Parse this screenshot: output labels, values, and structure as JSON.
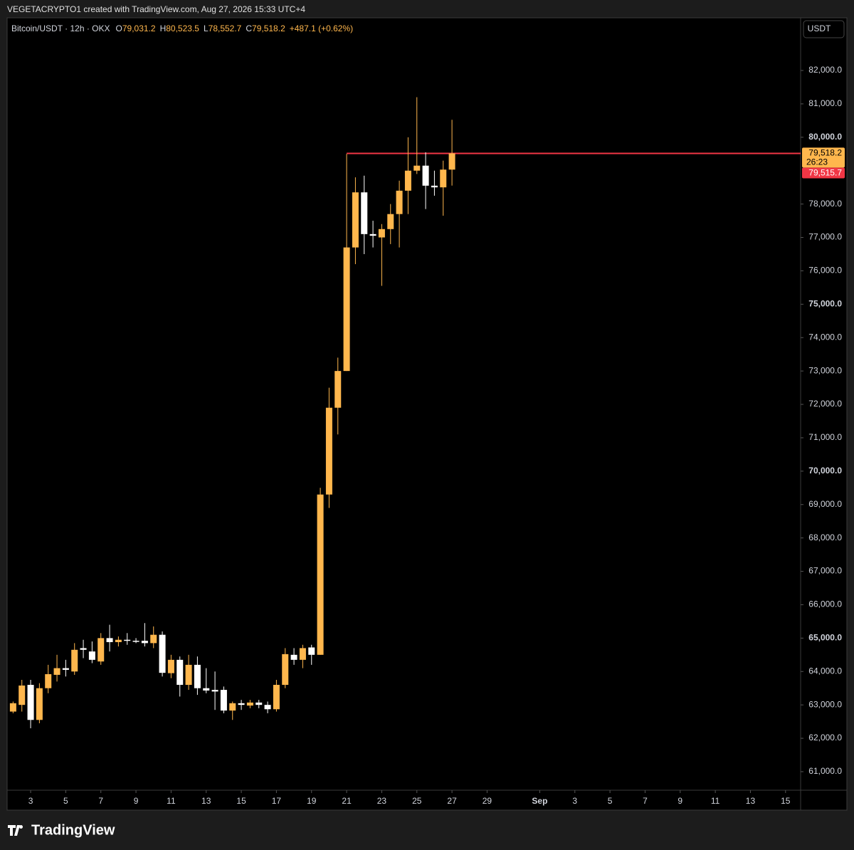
{
  "header": {
    "watermark": "VEGETACRYPTO1 created with TradingView.com, Aug 27, 2026 15:33 UTC+4",
    "currency": "USDT"
  },
  "legend": {
    "symbol": "Bitcoin/USDT · 12h · OKX",
    "fields": [
      {
        "label": "O",
        "value": "79,031.2"
      },
      {
        "label": "H",
        "value": "80,523.5"
      },
      {
        "label": "L",
        "value": "78,552.7"
      },
      {
        "label": "C",
        "value": "79,518.2"
      }
    ],
    "change": "+487.1 (+0.62%)"
  },
  "footer": {
    "brand": "TradingView"
  },
  "chart_data": {
    "type": "candlestick",
    "up_color": "#ffb74d",
    "down_color": "#ffffff",
    "x": [
      2,
      2.5,
      3,
      3.5,
      4,
      4.5,
      5,
      5.5,
      6,
      6.5,
      7,
      7.5,
      8,
      8.5,
      9,
      9.5,
      10,
      10.5,
      11,
      11.5,
      12,
      12.5,
      13,
      13.5,
      14,
      14.5,
      15,
      15.5,
      16,
      16.5,
      17,
      17.5,
      18,
      18.5,
      19,
      19.5,
      20,
      20.5,
      21,
      21.5,
      22,
      22.5,
      23,
      23.5,
      24,
      24.5,
      25,
      25.5,
      26,
      26.5,
      27
    ],
    "open": [
      62800,
      63000,
      63600,
      62550,
      63500,
      63900,
      64100,
      64000,
      64700,
      64600,
      64300,
      65000,
      64880,
      64950,
      64920,
      64920,
      64850,
      65100,
      63950,
      64350,
      63600,
      64200,
      63500,
      63450,
      63450,
      62830,
      63050,
      62980,
      63070,
      63000,
      62870,
      63600,
      64500,
      64350,
      64720,
      64500,
      69300,
      71900,
      73000,
      76700,
      78350,
      77100,
      77000,
      77250,
      77700,
      78400,
      79000,
      79150,
      78550,
      78500,
      79031.2
    ],
    "high": [
      63100,
      63750,
      63750,
      63650,
      64200,
      64500,
      64350,
      64850,
      64950,
      64900,
      65150,
      65400,
      65050,
      65150,
      65000,
      65450,
      65350,
      65200,
      64500,
      64450,
      64500,
      64450,
      64100,
      64000,
      63550,
      63100,
      63150,
      63150,
      63150,
      63100,
      63750,
      64700,
      64700,
      64800,
      64800,
      69500,
      72500,
      73400,
      79500,
      78800,
      78850,
      77500,
      77400,
      78000,
      78700,
      80000,
      81200,
      79550,
      79000,
      79300,
      80523.5
    ],
    "low": [
      62750,
      62800,
      62300,
      62450,
      63350,
      63700,
      63850,
      63900,
      64400,
      64250,
      64200,
      64600,
      64750,
      64800,
      64850,
      64750,
      64700,
      63850,
      63800,
      63250,
      63450,
      63300,
      63350,
      62850,
      62750,
      62550,
      62850,
      62900,
      62900,
      62750,
      62800,
      63500,
      64200,
      64100,
      64200,
      64500,
      68900,
      71100,
      73000,
      76200,
      76500,
      76700,
      75550,
      76800,
      76700,
      77700,
      78900,
      77850,
      78250,
      77650,
      78552.7
    ],
    "close": [
      63050,
      63580,
      62550,
      63500,
      63920,
      64100,
      64050,
      64650,
      64650,
      64350,
      65000,
      64880,
      64950,
      64920,
      64900,
      64850,
      65100,
      63960,
      64350,
      63600,
      64200,
      63500,
      63430,
      63400,
      62830,
      63050,
      63000,
      63070,
      63000,
      62870,
      63600,
      64520,
      64350,
      64700,
      64500,
      69300,
      71900,
      73000,
      76700,
      78350,
      77100,
      77050,
      77250,
      77700,
      78400,
      79000,
      79150,
      78550,
      78500,
      79031.2,
      79518.2
    ],
    "xlim": [
      1.66,
      46.86
    ],
    "xticks": [
      3,
      5,
      7,
      9,
      11,
      13,
      15,
      17,
      19,
      21,
      23,
      25,
      27,
      29,
      {
        "value": 32,
        "label": "Sep"
      },
      {
        "value": 34,
        "label": "3"
      },
      {
        "value": 36,
        "label": "5"
      },
      {
        "value": 38,
        "label": "7"
      },
      {
        "value": 40,
        "label": "9"
      },
      {
        "value": 42,
        "label": "11"
      },
      {
        "value": 44,
        "label": "13"
      },
      {
        "value": 46,
        "label": "15"
      }
    ],
    "ylim": [
      60445,
      83578
    ],
    "yticks": [
      {
        "value": 61000,
        "label": "61,000.0"
      },
      {
        "value": 62000,
        "label": "62,000.0"
      },
      {
        "value": 63000,
        "label": "63,000.0"
      },
      {
        "value": 64000,
        "label": "64,000.0"
      },
      {
        "value": 65000,
        "label": "65,000.0"
      },
      {
        "value": 66000,
        "label": "66,000.0"
      },
      {
        "value": 67000,
        "label": "67,000.0"
      },
      {
        "value": 68000,
        "label": "68,000.0"
      },
      {
        "value": 69000,
        "label": "69,000.0"
      },
      {
        "value": 70000,
        "label": "70,000.0"
      },
      {
        "value": 71000,
        "label": "71,000.0"
      },
      {
        "value": 72000,
        "label": "72,000.0"
      },
      {
        "value": 73000,
        "label": "73,000.0"
      },
      {
        "value": 74000,
        "label": "74,000.0"
      },
      {
        "value": 75000,
        "label": "75,000.0"
      },
      {
        "value": 76000,
        "label": "76,000.0"
      },
      {
        "value": 77000,
        "label": "77,000.0"
      },
      {
        "value": 78000,
        "label": "78,000.0"
      },
      {
        "value": 80000,
        "label": "80,000.0"
      },
      {
        "value": 81000,
        "label": "81,000.0"
      },
      {
        "value": 82000,
        "label": "82,000.0"
      }
    ],
    "grid": false,
    "price_line": {
      "value": 79515.7,
      "label": "79,515.7",
      "start_x": 21,
      "color": "#f23645"
    },
    "last_price": {
      "value": 79518.2,
      "label": "79,518.2",
      "countdown": "26:23"
    }
  }
}
